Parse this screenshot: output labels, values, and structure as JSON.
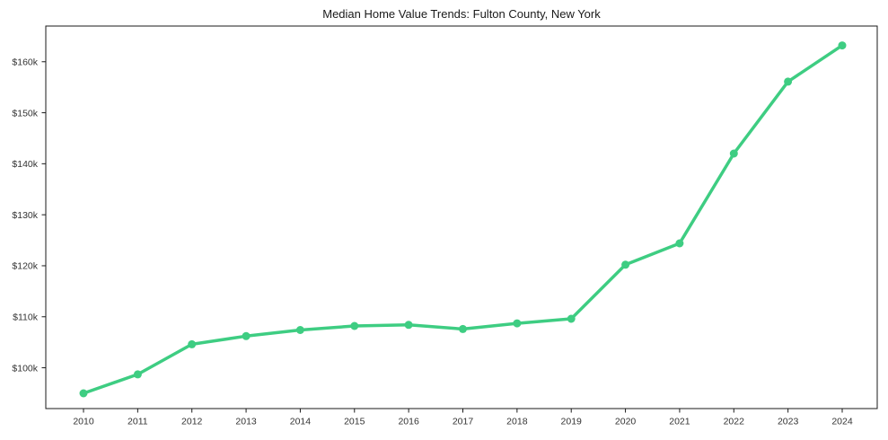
{
  "figure": {
    "background": "#ffffff"
  },
  "chart_data": {
    "type": "line",
    "title": "Median Home Value Trends: Fulton County, New York",
    "categories": [
      "2010",
      "2011",
      "2012",
      "2013",
      "2014",
      "2015",
      "2016",
      "2017",
      "2018",
      "2019",
      "2020",
      "2021",
      "2022",
      "2023",
      "2024"
    ],
    "series": [
      {
        "name": "Median Home Value",
        "values": [
          95000,
          98700,
          104600,
          106200,
          107400,
          108200,
          108400,
          107600,
          108700,
          109600,
          120200,
          124400,
          142000,
          156100,
          163200
        ],
        "color": "#3ecd82"
      }
    ],
    "xlabel": "",
    "ylabel": "",
    "y_ticks": [
      {
        "value": 100000,
        "label": "$100k"
      },
      {
        "value": 110000,
        "label": "$110k"
      },
      {
        "value": 120000,
        "label": "$120k"
      },
      {
        "value": 130000,
        "label": "$130k"
      },
      {
        "value": 140000,
        "label": "$140k"
      },
      {
        "value": 150000,
        "label": "$150k"
      },
      {
        "value": 160000,
        "label": "$160k"
      }
    ],
    "ylim": [
      92000,
      167000
    ],
    "grid": false,
    "legend_position": "none",
    "marker": "circle",
    "line_width": 3.5,
    "marker_radius": 4.5,
    "axis_color": "#1a1a1a",
    "tick_label_color": "#333333",
    "title_color": "#1a1a1a"
  }
}
